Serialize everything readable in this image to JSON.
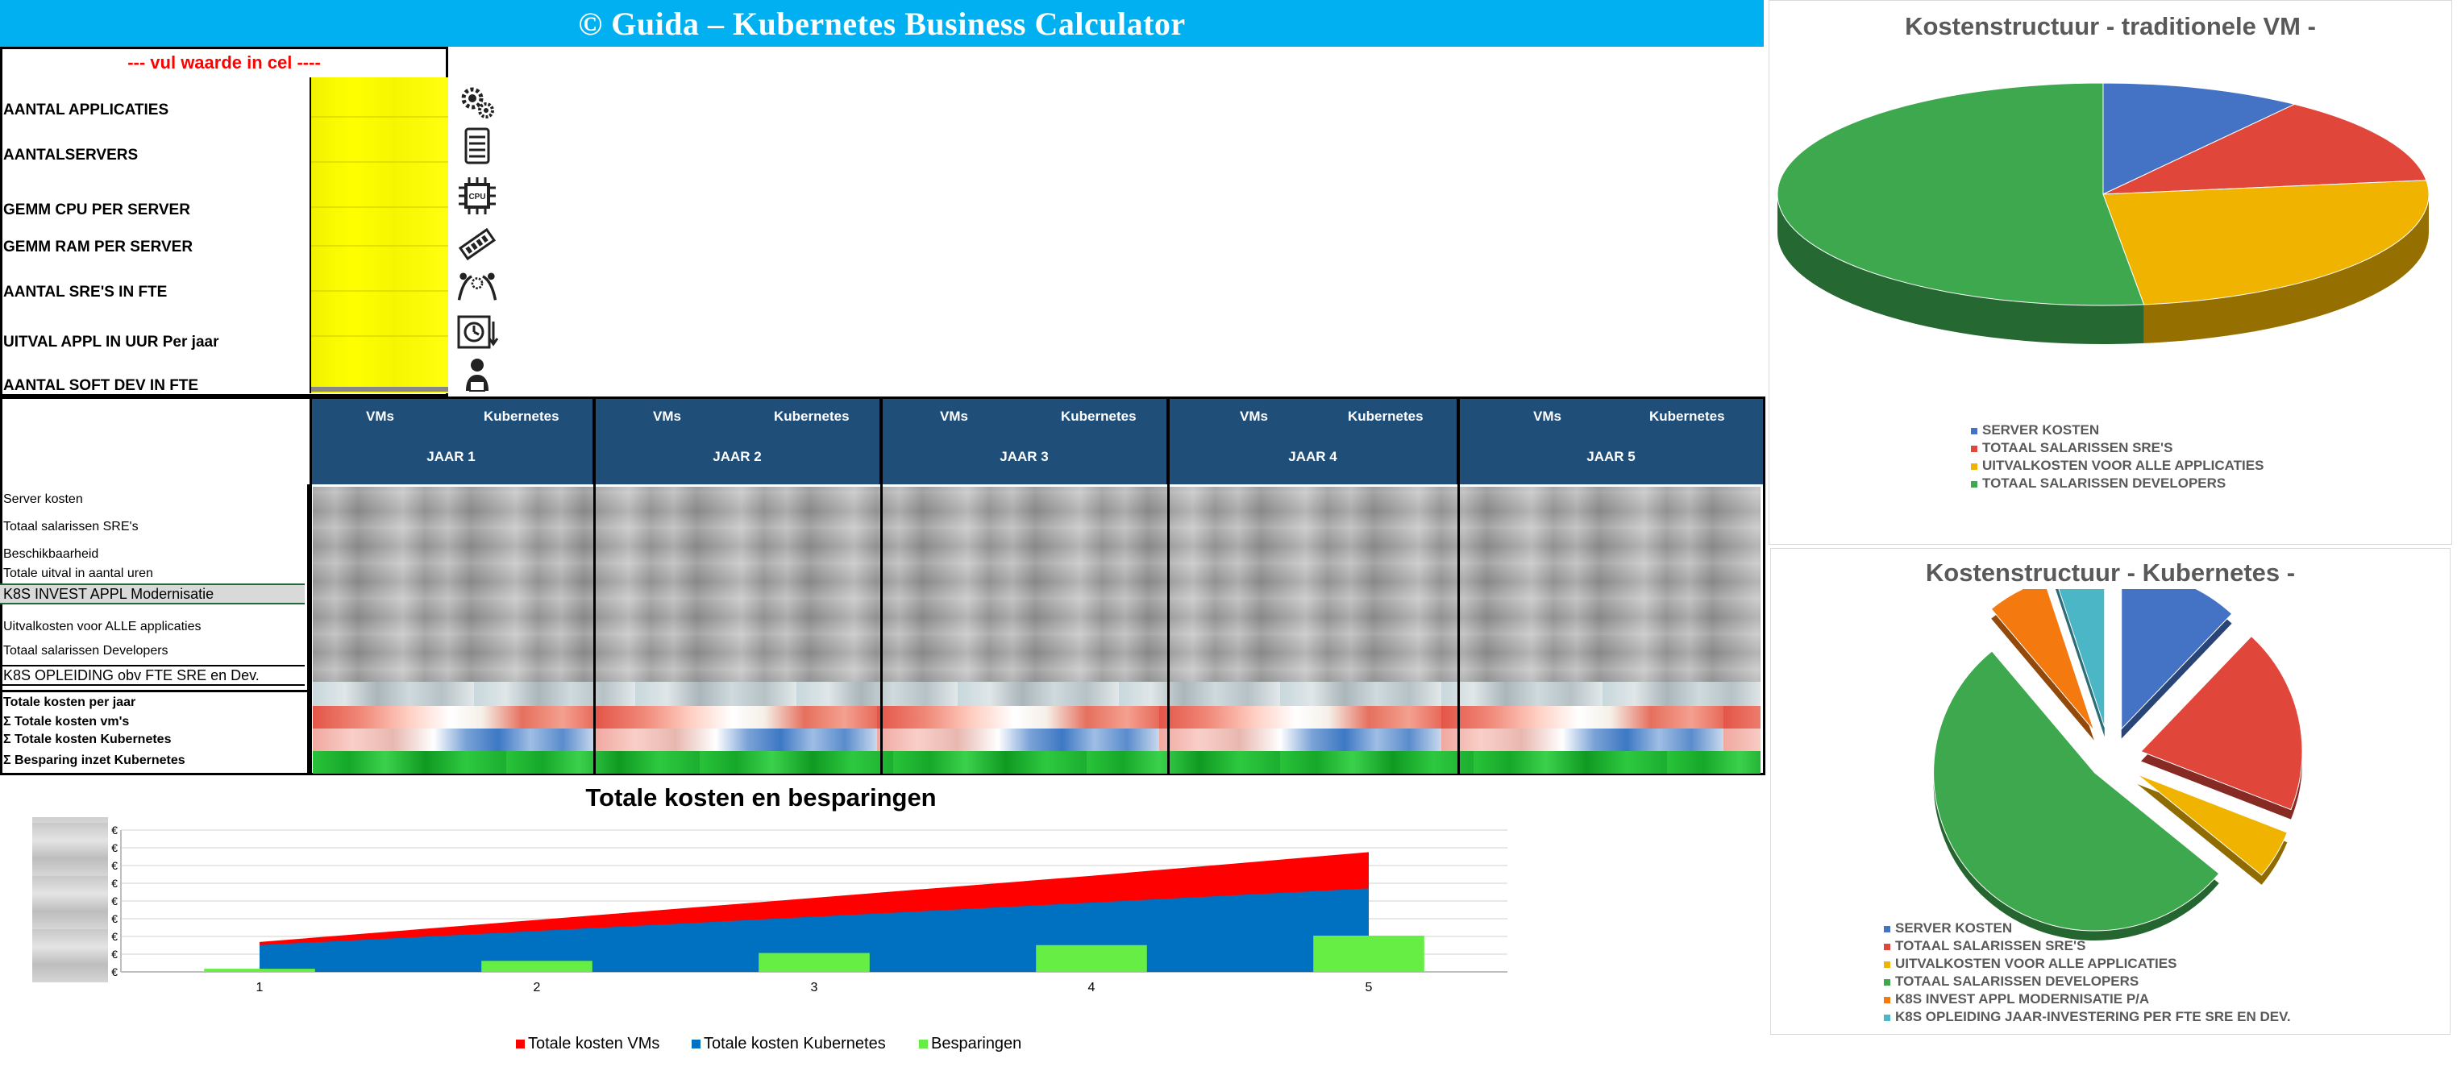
{
  "title": "© Guida – Kubernetes Business Calculator",
  "hint": "--- vul waarde in cel  ----",
  "inputs": {
    "labels": [
      "AANTAL APPLICATIES",
      "AANTALSERVERS",
      "GEMM CPU PER SERVER",
      "GEMM RAM PER SERVER",
      "AANTAL SRE'S IN FTE",
      "UITVAL APPL IN  UUR Per jaar",
      "AANTAL SOFT DEV IN FTE"
    ],
    "icons": [
      "gears-icon",
      "server-icon",
      "cpu-icon",
      "ram-icon",
      "team-icon",
      "downtime-clock-icon",
      "developer-icon"
    ],
    "cpu_icon_text": "CPU"
  },
  "table": {
    "years": [
      {
        "vm": "VMs",
        "k8s": "Kubernetes",
        "label": "JAAR 1"
      },
      {
        "vm": "VMs",
        "k8s": "Kubernetes",
        "label": "JAAR 2"
      },
      {
        "vm": "VMs",
        "k8s": "Kubernetes",
        "label": "JAAR 3"
      },
      {
        "vm": "VMs",
        "k8s": "Kubernetes",
        "label": "JAAR 4"
      },
      {
        "vm": "VMs",
        "k8s": "Kubernetes",
        "label": "JAAR 5"
      }
    ],
    "rows": [
      "Server kosten",
      "Totaal salarissen SRE's",
      "Beschikbaarheid",
      "Totale uitval in aantal uren",
      "K8S INVEST  APPL Modernisatie",
      "Uitvalkosten voor ALLE applicaties",
      "Totaal salarissen Developers",
      "K8S  OPLEIDING obv FTE SRE en Dev.",
      "Totale kosten per jaar",
      "Σ  Totale kosten vm's",
      "Σ Totale kosten Kubernetes",
      "Σ Besparing inzet Kubernetes"
    ]
  },
  "colors": {
    "blue": "#4472c4",
    "red": "#e0463a",
    "yellow": "#f0b400",
    "green": "#3ea84f",
    "orange": "#f47a10",
    "teal": "#4ab6c6",
    "area_red": "#ff0000",
    "area_blue": "#0070c0",
    "area_green": "#66ee44"
  },
  "chart_data": [
    {
      "type": "pie",
      "title": "Kostenstructuur - traditionele VM -",
      "labels": [
        "SERVER KOSTEN",
        "TOTAAL SALARISSEN SRE'S",
        "UITVALKOSTEN VOOR ALLE APPLICATIES",
        "TOTAAL SALARISSEN DEVELOPERS"
      ],
      "values": [
        10,
        13,
        25,
        52
      ],
      "legend": "bottom"
    },
    {
      "type": "pie",
      "title": "Kostenstructuur - Kubernetes -",
      "labels": [
        "SERVER KOSTEN",
        "TOTAAL SALARISSEN SRE'S",
        "UITVALKOSTEN VOOR ALLE APPLICATIES",
        "TOTAAL SALARISSEN DEVELOPERS",
        "K8S INVEST  APPL MODERNISATIE P/A",
        "K8S OPLEIDING JAAR-INVESTERING PER FTE SRE EN DEV."
      ],
      "values": [
        12,
        19,
        5,
        53,
        6,
        5
      ],
      "exploded": true,
      "legend": "bottom"
    },
    {
      "type": "area",
      "title": "Totale kosten en besparingen",
      "categories": [
        "1",
        "2",
        "3",
        "4",
        "5"
      ],
      "series": [
        {
          "name": "Totale kosten VMs",
          "type": "area",
          "values": [
            19,
            33,
            47,
            61,
            76
          ]
        },
        {
          "name": "Totale kosten Kubernetes",
          "type": "area",
          "values": [
            17,
            26,
            35,
            44,
            53
          ]
        },
        {
          "name": "Besparingen",
          "type": "bar",
          "values": [
            2,
            7,
            12,
            17,
            23
          ]
        }
      ],
      "y_tick_label": "€",
      "y_tick_count": 9,
      "ylim": [
        0,
        90
      ],
      "grid": true,
      "legend": "bottom"
    }
  ]
}
